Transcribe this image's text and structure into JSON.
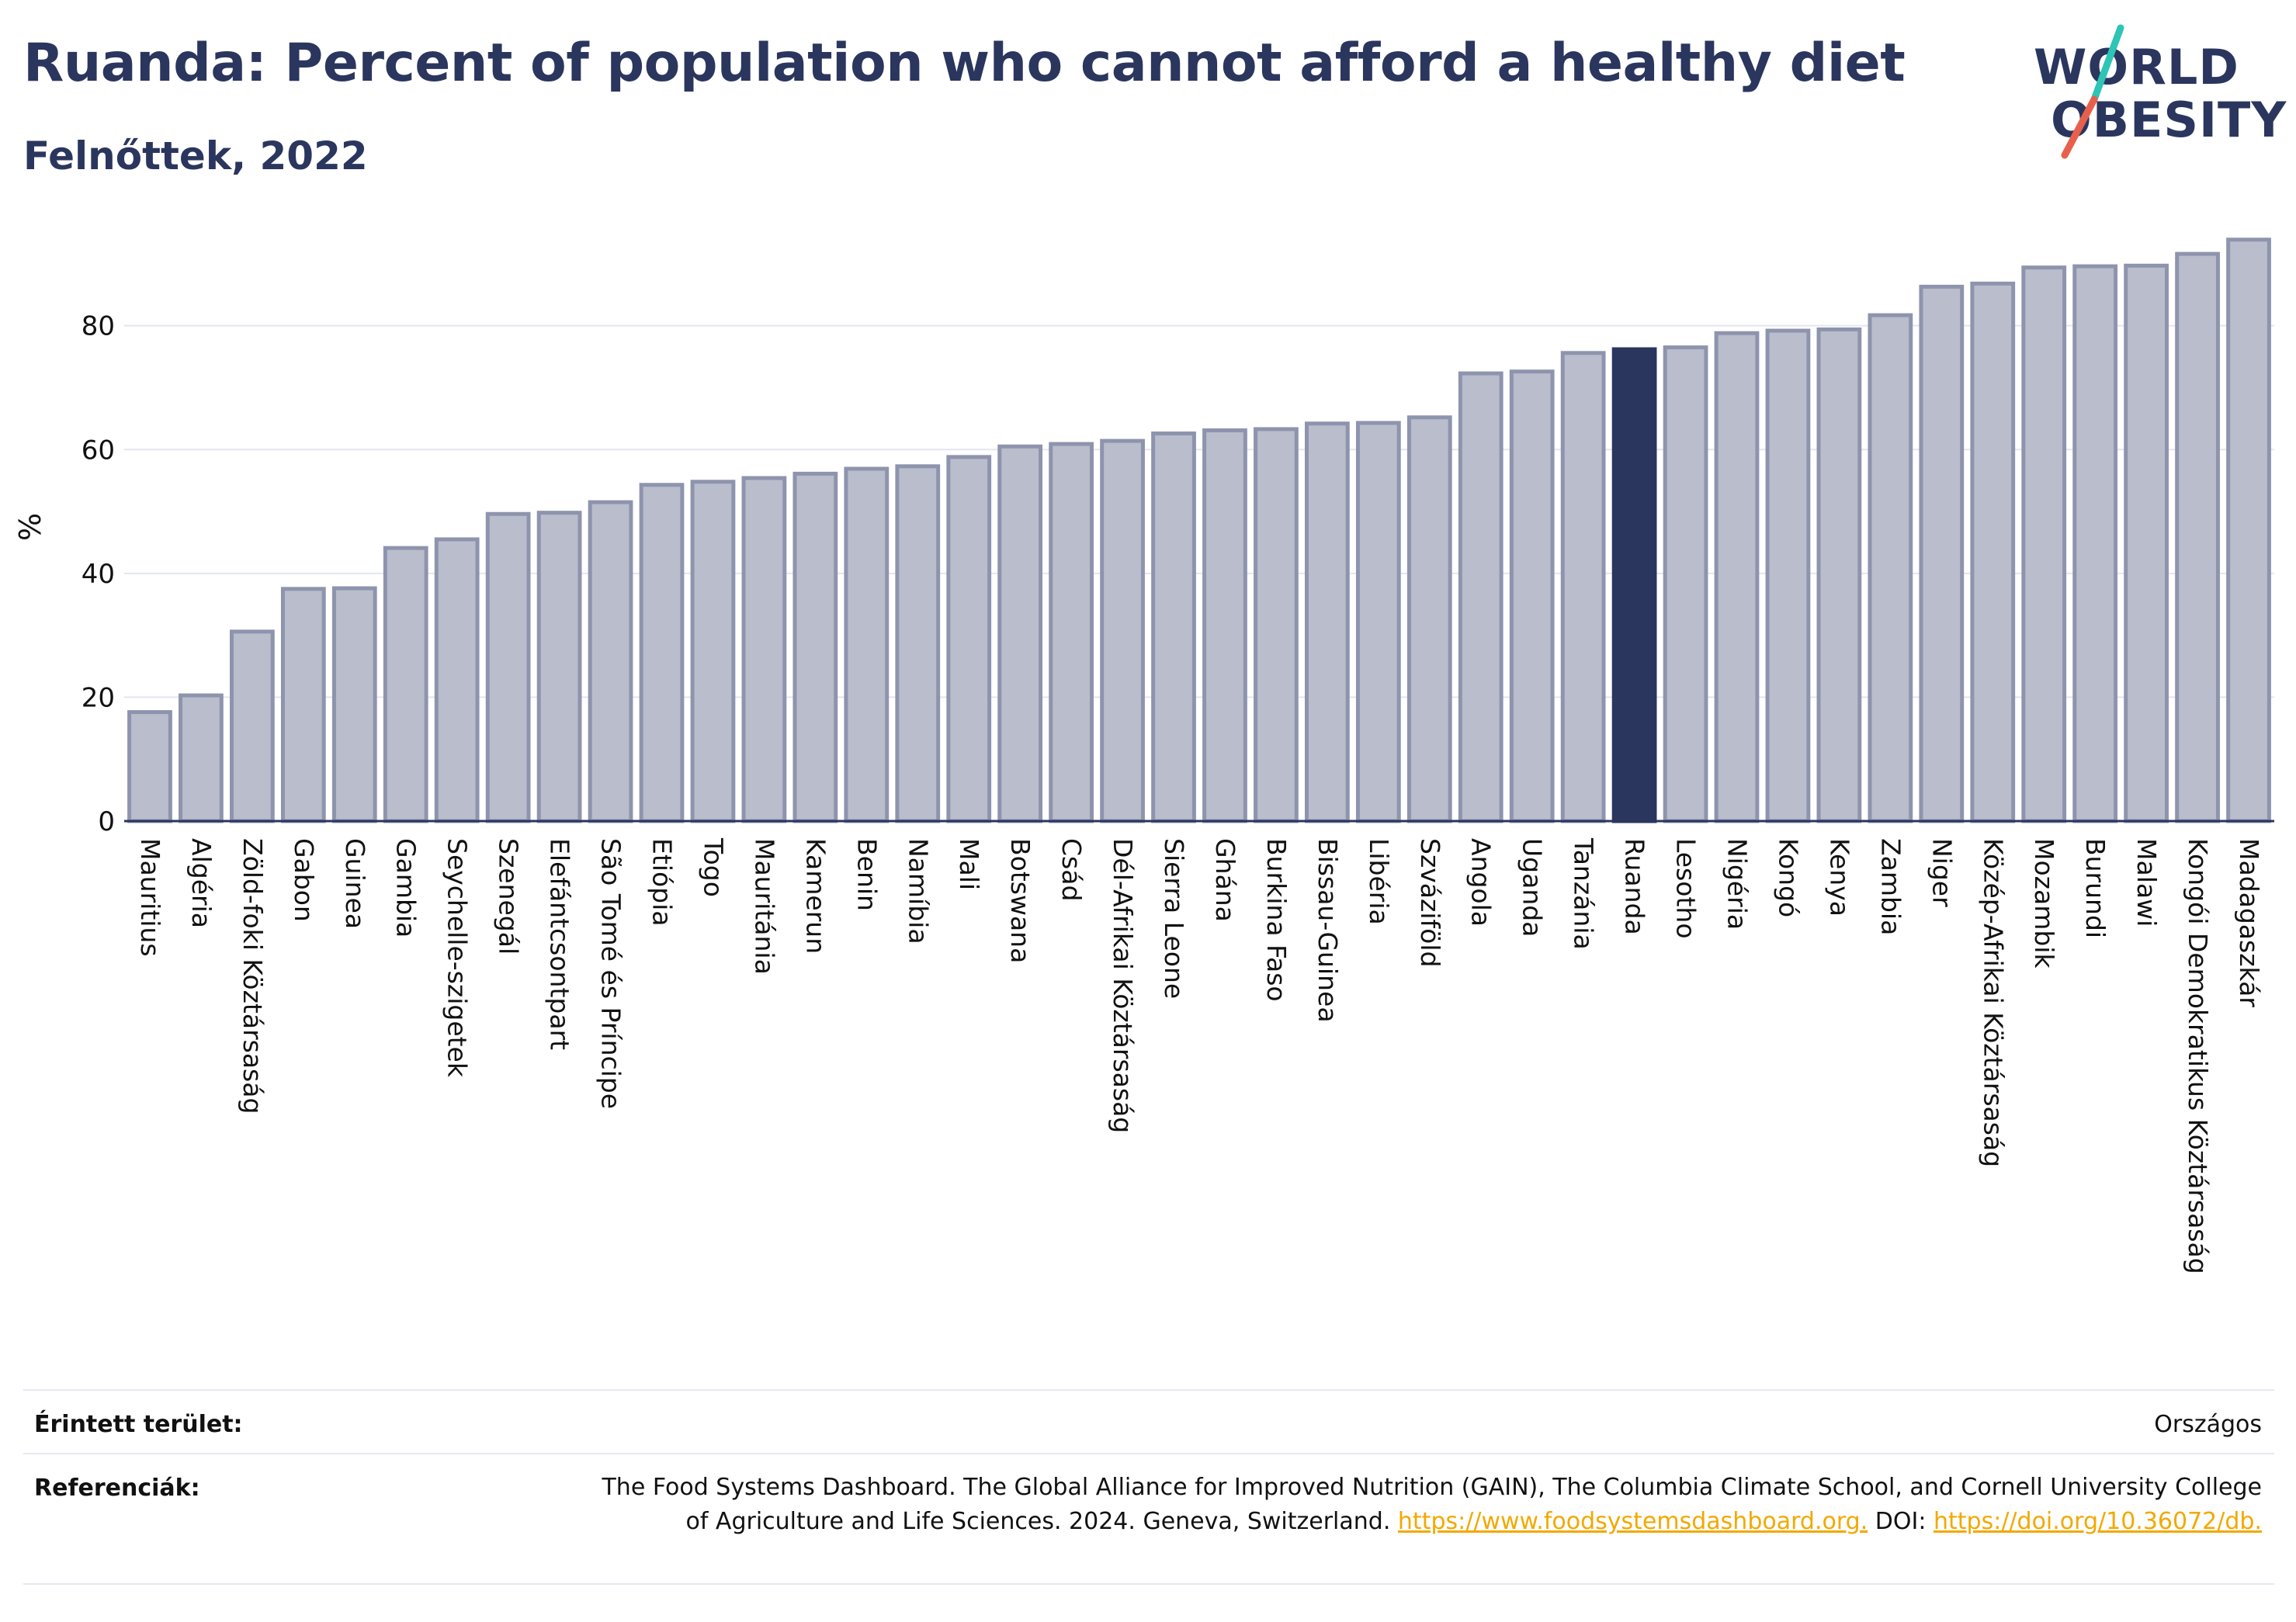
{
  "header": {
    "title": "Ruanda: Percent of population who cannot afford a healthy diet",
    "subtitle": "Felnőttek, 2022"
  },
  "logo": {
    "line1": "WORLD",
    "line2": "OBESITY",
    "slash_colors": [
      "#2ec4b6",
      "#e8604c"
    ]
  },
  "colors": {
    "bar_fill": "#b9bdcc",
    "bar_stroke": "#8e94ad",
    "highlight": "#2b365e",
    "grid": "#e3e6ef",
    "axis": "#2b365e"
  },
  "chart_data": {
    "type": "bar",
    "title": "",
    "xlabel": "",
    "ylabel": "%",
    "ylim": [
      0,
      95
    ],
    "yticks": [
      0,
      20,
      40,
      60,
      80
    ],
    "grid": true,
    "highlight": "Ruanda",
    "categories": [
      "Mauritius",
      "Algéria",
      "Zöld-foki Köztársaság",
      "Gabon",
      "Guinea",
      "Gambia",
      "Seychelle-szigetek",
      "Szenegál",
      "Elefántcsontpart",
      "São Tomé és Príncipe",
      "Etiópia",
      "Togo",
      "Mauritánia",
      "Kamerun",
      "Benin",
      "Namíbia",
      "Mali",
      "Botswana",
      "Csád",
      "Dél-Afrikai Köztársaság",
      "Sierra Leone",
      "Ghána",
      "Burkina Faso",
      "Bissau-Guinea",
      "Libéria",
      "Szváziföld",
      "Angola",
      "Uganda",
      "Tanzánia",
      "Ruanda",
      "Lesotho",
      "Nigéria",
      "Kongó",
      "Kenya",
      "Zambia",
      "Niger",
      "Közép-Afrikai Köztársaság",
      "Mozambik",
      "Burundi",
      "Malawi",
      "Kongói Demokratikus Köztársaság",
      "Madagaszkár"
    ],
    "values": [
      17.6,
      20.3,
      30.6,
      37.5,
      37.6,
      44.1,
      45.5,
      49.6,
      49.8,
      51.5,
      54.3,
      54.8,
      55.4,
      56.1,
      56.9,
      57.3,
      58.8,
      60.5,
      60.9,
      61.4,
      62.6,
      63.1,
      63.3,
      64.2,
      64.3,
      65.2,
      72.3,
      72.6,
      75.6,
      76.2,
      76.5,
      78.8,
      79.2,
      79.4,
      81.7,
      86.3,
      86.8,
      89.4,
      89.6,
      89.7,
      91.6,
      93.9
    ]
  },
  "footer": {
    "area_label": "Érintett terület:",
    "area_value": "Országos",
    "ref_label": "Referenciák:",
    "ref_text": "The Food Systems Dashboard. The Global Alliance for Improved Nutrition (GAIN), The Columbia Climate School, and Cornell University College of Agriculture and Life Sciences. 2024. Geneva, Switzerland.",
    "ref_link1": "https://www.foodsystemsdashboard.org.",
    "ref_doi_label": "DOI:",
    "ref_link2": "https://doi.org/10.36072/db."
  }
}
